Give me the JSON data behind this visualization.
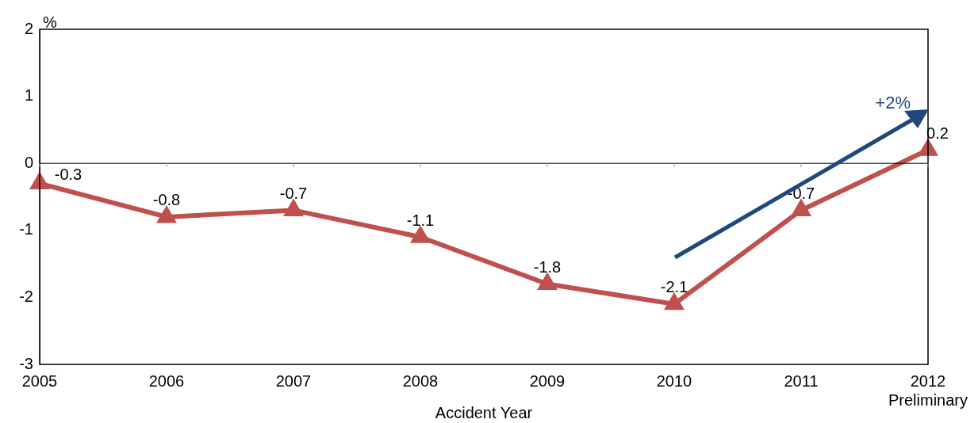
{
  "chart_data": {
    "type": "line",
    "xlabel": "Accident Year",
    "ylabel": "%",
    "categories": [
      "2005",
      "2006",
      "2007",
      "2008",
      "2009",
      "2010",
      "2011",
      "2012\nPreliminary"
    ],
    "series": [
      {
        "color": "#c0504d",
        "values": [
          -0.3,
          -0.8,
          -0.7,
          -1.1,
          -1.8,
          -2.1,
          -0.7,
          0.2
        ]
      }
    ],
    "ylim": [
      -3,
      2
    ],
    "yticks": [
      -3,
      -2,
      -1,
      0,
      1,
      2
    ],
    "grid": false,
    "legend": false,
    "marker": "triangle",
    "line_style": "solid",
    "data_labels": true,
    "ref_lines": [
      {
        "axis": "y",
        "value": 0,
        "color": "#000000"
      }
    ],
    "annotations": [
      "+2%"
    ]
  }
}
